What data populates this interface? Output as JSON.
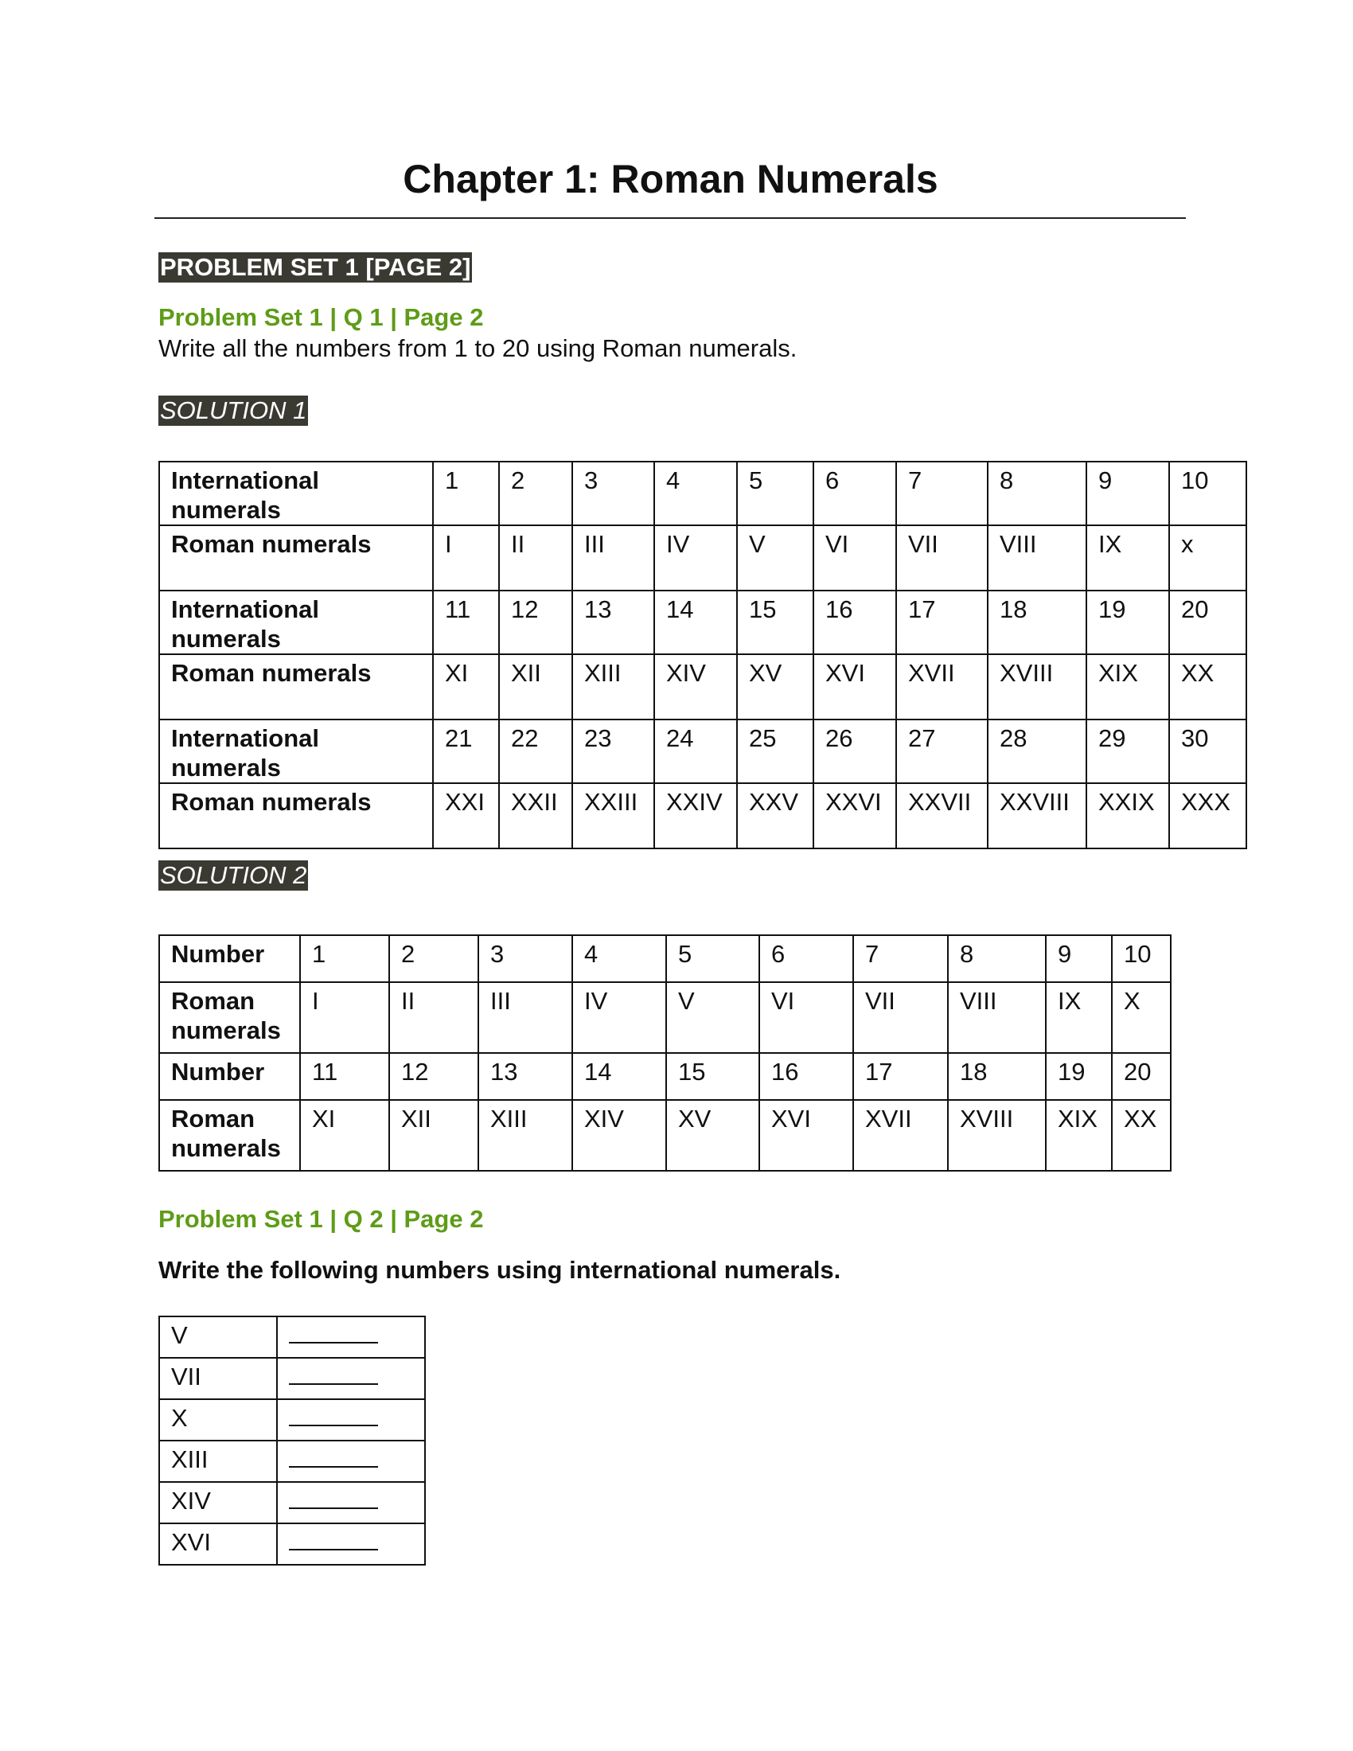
{
  "title": "Chapter 1: Roman Numerals",
  "section_badge": "PROBLEM SET 1 [PAGE 2]",
  "q1": {
    "heading": "Problem Set 1 | Q 1 | Page 2",
    "text": "Write all the numbers from 1 to 20 using Roman numerals."
  },
  "solution1": {
    "label": "SOLUTION 1",
    "rows": [
      {
        "header": "International numerals",
        "cells": [
          "1",
          "2",
          "3",
          "4",
          "5",
          "6",
          "7",
          "8",
          "9",
          "10"
        ]
      },
      {
        "header": "Roman numerals",
        "cells": [
          "I",
          "II",
          "III",
          "IV",
          "V",
          "VI",
          "VII",
          "VIII",
          "IX",
          "x"
        ]
      },
      {
        "header": "International numerals",
        "cells": [
          "11",
          "12",
          "13",
          "14",
          "15",
          "16",
          "17",
          "18",
          "19",
          "20"
        ]
      },
      {
        "header": "Roman numerals",
        "cells": [
          "XI",
          "XII",
          "XIII",
          "XIV",
          "XV",
          "XVI",
          "XVII",
          "XVIII",
          "XIX",
          "XX"
        ]
      },
      {
        "header": "International numerals",
        "cells": [
          "21",
          "22",
          "23",
          "24",
          "25",
          "26",
          "27",
          "28",
          "29",
          "30"
        ]
      },
      {
        "header": "Roman numerals",
        "cells": [
          "XXI",
          "XXII",
          "XXIII",
          "XXIV",
          "XXV",
          "XXVI",
          "XXVII",
          "XXVIII",
          "XXIX",
          "XXX"
        ]
      }
    ]
  },
  "solution2": {
    "label": "SOLUTION 2",
    "rows": [
      {
        "header": "Number",
        "cells": [
          "1",
          "2",
          "3",
          "4",
          "5",
          "6",
          "7",
          "8",
          "9",
          "10"
        ]
      },
      {
        "header": "Roman numerals",
        "cells": [
          "I",
          "II",
          "III",
          "IV",
          "V",
          "VI",
          "VII",
          "VIII",
          "IX",
          "X"
        ]
      },
      {
        "header": "Number",
        "cells": [
          "11",
          "12",
          "13",
          "14",
          "15",
          "16",
          "17",
          "18",
          "19",
          "20"
        ]
      },
      {
        "header": "Roman numerals",
        "cells": [
          "XI",
          "XII",
          "XIII",
          "XIV",
          "XV",
          "XVI",
          "XVII",
          "XVIII",
          "XIX",
          "XX"
        ]
      }
    ]
  },
  "q2": {
    "heading": "Problem Set 1 | Q 2 | Page 2",
    "text": "Write the following numbers using international numerals.",
    "items": [
      "V",
      "VII",
      "X",
      "XIII",
      "XIV",
      "XVI"
    ]
  },
  "colors": {
    "heading_green": "#5e9c17",
    "badge_bg": "#3a3a33"
  }
}
